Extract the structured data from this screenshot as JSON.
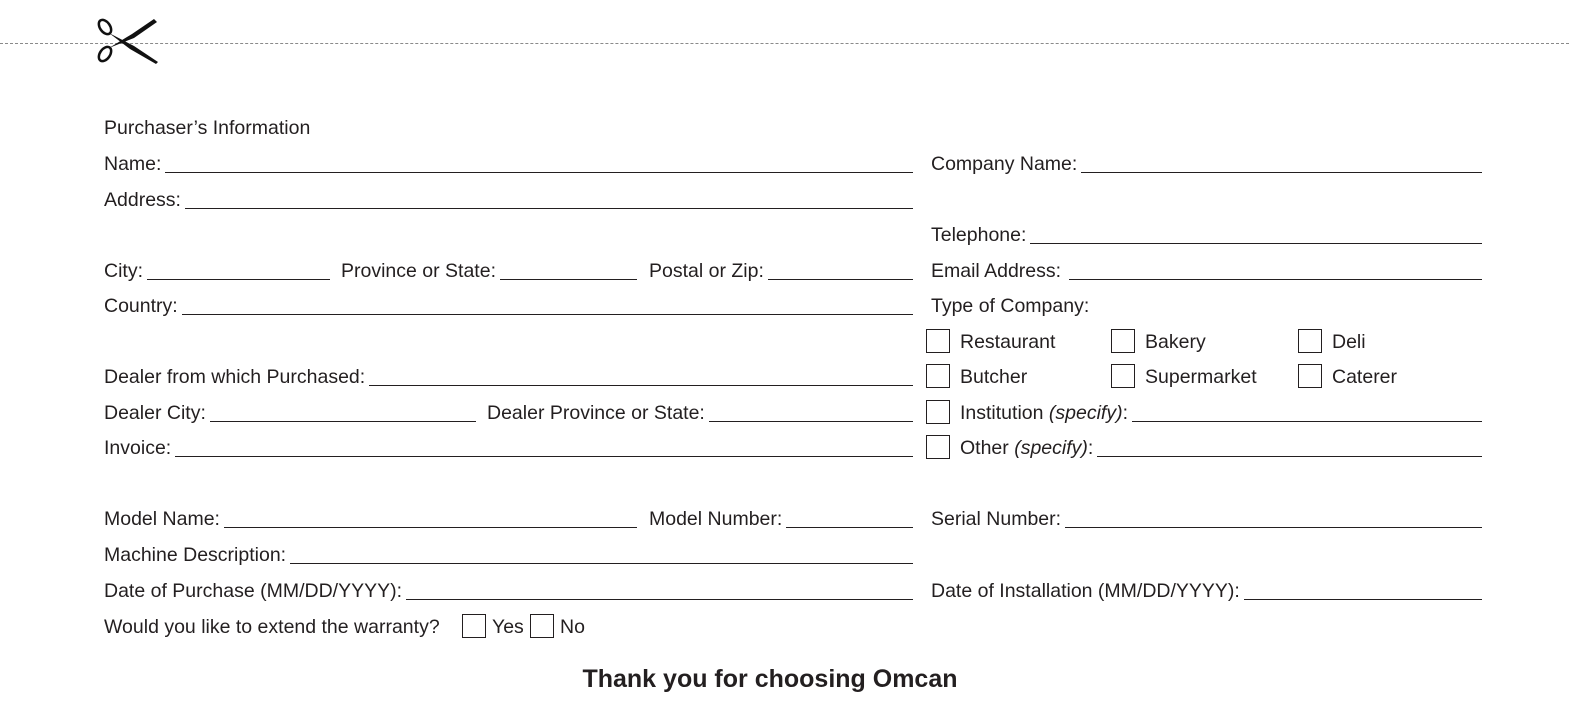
{
  "section_title": "Purchaser’s Information",
  "fields": {
    "name": "Name:",
    "company_name": "Company Name:",
    "address": "Address:",
    "telephone": "Telephone:",
    "city": "City:",
    "province": "Province or State:",
    "postal": "Postal or Zip:",
    "email": "Email Address:",
    "country": "Country:",
    "type_of_company": "Type of Company:",
    "dealer": "Dealer from which Purchased:",
    "dealer_city": "Dealer City:",
    "dealer_province": "Dealer Province or State:",
    "invoice": "Invoice:",
    "model_name": "Model Name:",
    "model_number": "Model Number:",
    "serial_number": "Serial Number:",
    "machine_description": "Machine Description:",
    "date_purchase": "Date of Purchase (MM/DD/YYYY):",
    "date_installation": "Date of Installation (MM/DD/YYYY):",
    "warranty": "Would you like to extend the warranty?"
  },
  "company_types": {
    "restaurant": "Restaurant",
    "bakery": "Bakery",
    "deli": "Deli",
    "butcher": "Butcher",
    "supermarket": "Supermarket",
    "caterer": "Caterer",
    "institution": "Institution",
    "other": "Other",
    "specify": "(specify)",
    "colon": ":"
  },
  "warranty_options": {
    "yes": "Yes",
    "no": "No"
  },
  "footer": "Thank you for choosing Omcan",
  "icons": {
    "cut_line": "scissors-icon"
  }
}
